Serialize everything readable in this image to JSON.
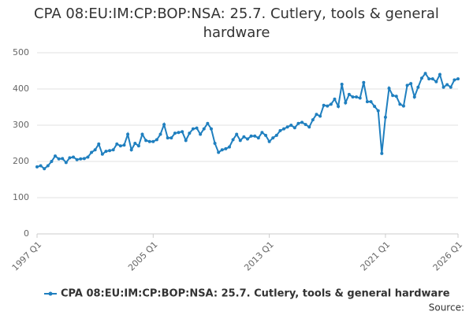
{
  "chart_data": {
    "type": "line",
    "title": "CPA 08:EU:IM:CP:BOP:NSA: 25.7. Cutlery, tools & general hardware",
    "source": "Source:",
    "categories": [
      "1997 Q1",
      null,
      null,
      null,
      null,
      null,
      null,
      null,
      null,
      null,
      null,
      null,
      null,
      null,
      null,
      null,
      null,
      null,
      null,
      null,
      null,
      null,
      null,
      null,
      null,
      null,
      null,
      null,
      null,
      null,
      null,
      null,
      "2005 Q1",
      null,
      null,
      null,
      null,
      null,
      null,
      null,
      null,
      null,
      null,
      null,
      null,
      null,
      null,
      null,
      null,
      null,
      null,
      null,
      null,
      null,
      null,
      null,
      null,
      null,
      null,
      null,
      null,
      null,
      null,
      null,
      "2013 Q1",
      null,
      null,
      null,
      null,
      null,
      null,
      null,
      null,
      null,
      null,
      null,
      null,
      null,
      null,
      null,
      null,
      null,
      null,
      null,
      null,
      null,
      null,
      null,
      null,
      null,
      null,
      null,
      null,
      null,
      null,
      null,
      "2021 Q1",
      null,
      null,
      null,
      null,
      null,
      null,
      null,
      null,
      null,
      null,
      null,
      null,
      null,
      null,
      null,
      null,
      null,
      null,
      null,
      "2026 Q1"
    ],
    "series": [
      {
        "name": "CPA 08:EU:IM:CP:BOP:NSA: 25.7. Cutlery, tools & general hardware",
        "color": "#1f7fbf",
        "values": [
          185,
          188,
          180,
          188,
          200,
          215,
          207,
          208,
          197,
          210,
          212,
          205,
          207,
          208,
          212,
          225,
          232,
          248,
          220,
          228,
          230,
          232,
          248,
          243,
          245,
          275,
          232,
          250,
          243,
          275,
          258,
          255,
          255,
          260,
          275,
          302,
          265,
          265,
          278,
          280,
          282,
          258,
          278,
          290,
          292,
          275,
          290,
          305,
          290,
          250,
          225,
          232,
          235,
          240,
          260,
          275,
          258,
          268,
          262,
          270,
          270,
          265,
          280,
          272,
          255,
          265,
          272,
          285,
          290,
          295,
          300,
          293,
          305,
          308,
          302,
          295,
          315,
          330,
          325,
          355,
          353,
          358,
          372,
          352,
          413,
          362,
          385,
          378,
          378,
          375,
          418,
          365,
          365,
          352,
          340,
          222,
          322,
          402,
          382,
          380,
          358,
          353,
          410,
          415,
          378,
          405,
          430,
          443,
          428,
          428,
          420,
          440,
          405,
          412,
          405,
          425,
          428
        ]
      }
    ],
    "ylim": [
      0,
      500
    ],
    "yticks": [
      0,
      100,
      200,
      300,
      400,
      500
    ],
    "grid": true
  }
}
